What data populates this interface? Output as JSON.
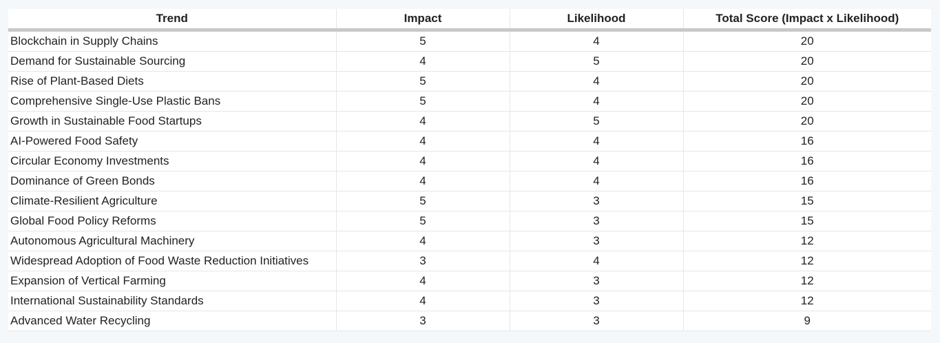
{
  "table": {
    "headers": {
      "trend": "Trend",
      "impact": "Impact",
      "likelihood": "Likelihood",
      "total": "Total Score (Impact x Likelihood)"
    },
    "rows": [
      {
        "trend": "Blockchain in Supply Chains",
        "impact": "5",
        "likelihood": "4",
        "total": "20"
      },
      {
        "trend": "Demand for Sustainable Sourcing",
        "impact": "4",
        "likelihood": "5",
        "total": "20"
      },
      {
        "trend": "Rise of Plant-Based Diets",
        "impact": "5",
        "likelihood": "4",
        "total": "20"
      },
      {
        "trend": "Comprehensive Single-Use Plastic Bans",
        "impact": "5",
        "likelihood": "4",
        "total": "20"
      },
      {
        "trend": "Growth in Sustainable Food Startups",
        "impact": "4",
        "likelihood": "5",
        "total": "20"
      },
      {
        "trend": "AI-Powered Food Safety",
        "impact": "4",
        "likelihood": "4",
        "total": "16"
      },
      {
        "trend": "Circular Economy Investments",
        "impact": "4",
        "likelihood": "4",
        "total": "16"
      },
      {
        "trend": "Dominance of Green Bonds",
        "impact": "4",
        "likelihood": "4",
        "total": "16"
      },
      {
        "trend": "Climate-Resilient Agriculture",
        "impact": "5",
        "likelihood": "3",
        "total": "15"
      },
      {
        "trend": "Global Food Policy Reforms",
        "impact": "5",
        "likelihood": "3",
        "total": "15"
      },
      {
        "trend": "Autonomous Agricultural Machinery",
        "impact": "4",
        "likelihood": "3",
        "total": "12"
      },
      {
        "trend": "Widespread Adoption of Food Waste Reduction Initiatives",
        "impact": "3",
        "likelihood": "4",
        "total": "12"
      },
      {
        "trend": "Expansion of Vertical Farming",
        "impact": "4",
        "likelihood": "3",
        "total": "12"
      },
      {
        "trend": "International Sustainability Standards",
        "impact": "4",
        "likelihood": "3",
        "total": "12"
      },
      {
        "trend": "Advanced Water Recycling",
        "impact": "3",
        "likelihood": "3",
        "total": "9"
      }
    ]
  },
  "colors": {
    "page_background": "#f5f8fb",
    "header_rule": "#c8c8c8",
    "grid_line": "#e4e6e8"
  }
}
